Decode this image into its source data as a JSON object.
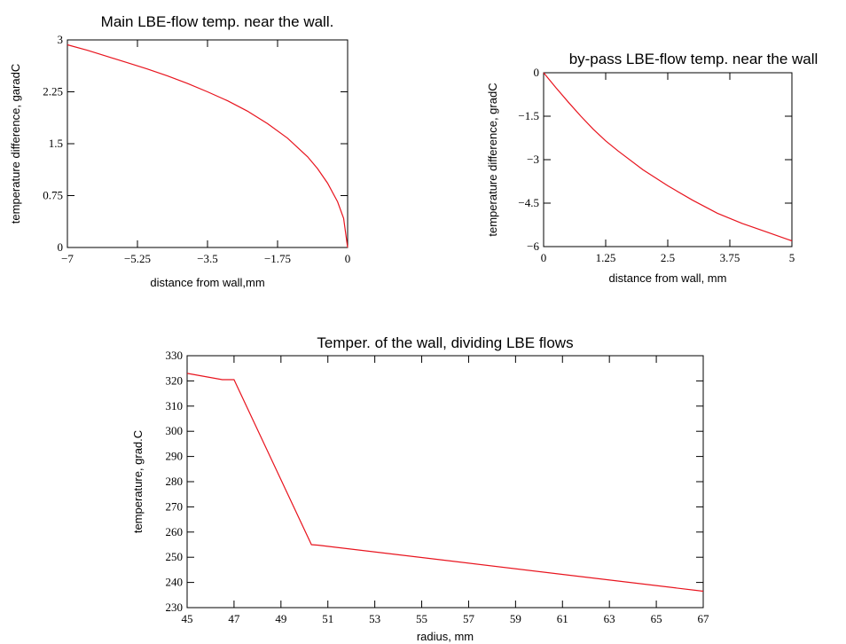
{
  "chart_data": [
    {
      "type": "line",
      "title": "Main LBE-flow temp. near the wall.",
      "xlabel": "distance from wall,mm",
      "ylabel": "temperature difference, garadC",
      "xlim": [
        -7,
        0
      ],
      "ylim": [
        0,
        3
      ],
      "xticks": [
        "-7",
        "-5.25",
        "-3.5",
        "-1.75",
        "0"
      ],
      "yticks": [
        "0",
        "0.75",
        "1.5",
        "2.25",
        "3"
      ],
      "series": [
        {
          "x": [
            -7,
            -6.5,
            -6,
            -5.5,
            -5,
            -4.5,
            -4,
            -3.5,
            -3,
            -2.5,
            -2,
            -1.5,
            -1,
            -0.75,
            -0.5,
            -0.25,
            -0.1,
            0
          ],
          "y": [
            2.93,
            2.85,
            2.76,
            2.67,
            2.58,
            2.48,
            2.37,
            2.25,
            2.12,
            1.97,
            1.79,
            1.58,
            1.31,
            1.14,
            0.93,
            0.66,
            0.42,
            0
          ],
          "color": "#e8141e"
        }
      ]
    },
    {
      "type": "line",
      "title": "by-pass LBE-flow temp. near the wall",
      "xlabel": "distance from wall, mm",
      "ylabel": "temperature difference, gradC",
      "xlim": [
        0,
        5
      ],
      "ylim": [
        -6,
        0
      ],
      "xticks": [
        "0",
        "1.25",
        "2.5",
        "3.75",
        "5"
      ],
      "yticks": [
        "-6",
        "-4.5",
        "-3",
        "-1.5",
        "0"
      ],
      "series": [
        {
          "x": [
            0,
            0.25,
            0.5,
            0.75,
            1,
            1.25,
            1.5,
            2,
            2.5,
            3,
            3.5,
            4,
            4.5,
            5
          ],
          "y": [
            0,
            -0.52,
            -1.02,
            -1.5,
            -1.95,
            -2.35,
            -2.7,
            -3.35,
            -3.9,
            -4.4,
            -4.85,
            -5.2,
            -5.5,
            -5.8
          ],
          "color": "#e8141e"
        }
      ]
    },
    {
      "type": "line",
      "title": "Temper. of the wall, dividing LBE flows",
      "xlabel": "radius, mm",
      "ylabel": "temperature, grad.C",
      "xlim": [
        45,
        67
      ],
      "ylim": [
        230,
        330
      ],
      "xticks": [
        "45",
        "47",
        "49",
        "51",
        "53",
        "55",
        "57",
        "59",
        "61",
        "63",
        "65",
        "67"
      ],
      "yticks": [
        "230",
        "240",
        "250",
        "260",
        "270",
        "280",
        "290",
        "300",
        "310",
        "320",
        "330"
      ],
      "series": [
        {
          "x": [
            45,
            46.5,
            47,
            50.3,
            50.6,
            67
          ],
          "y": [
            323,
            320.5,
            320.5,
            255,
            254.8,
            236.5
          ],
          "color": "#e8141e"
        }
      ]
    }
  ]
}
